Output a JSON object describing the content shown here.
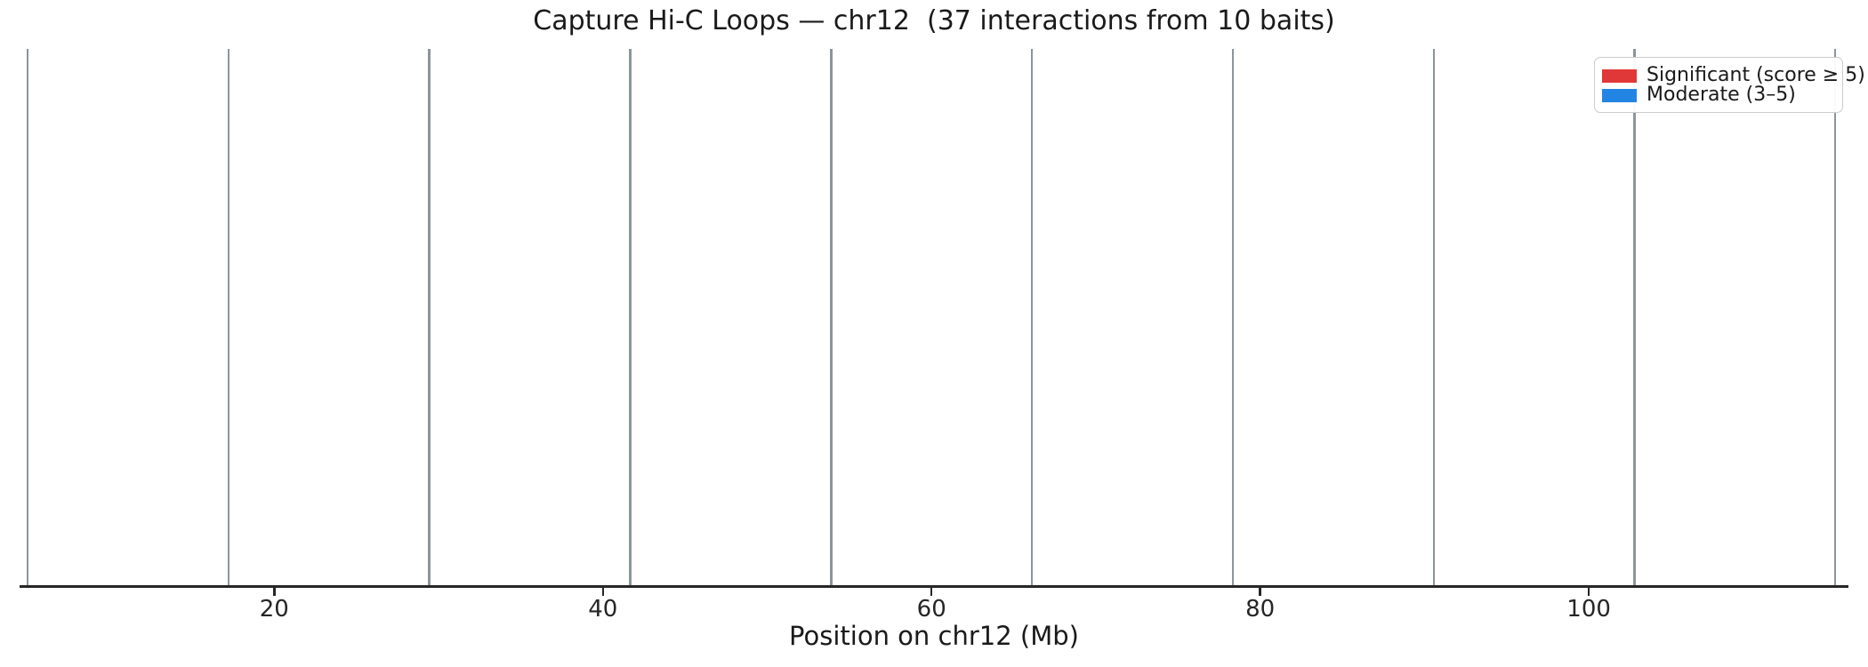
{
  "figure": {
    "background": "#ffffff",
    "text_color": "#1a1a1a",
    "axis_color": "#262626"
  },
  "chart_data": {
    "type": "line",
    "subtype": "genomic-arc-diagram (only vertical bait position lines visible; no arcs rendered in plot area)",
    "title": "Capture Hi-C Loops — chr12  (37 interactions from 10 baits)",
    "xlabel": "Position on chr12 (Mb)",
    "ylabel": "",
    "xlim": [
      4.5,
      115.8
    ],
    "xticks": [
      20,
      40,
      60,
      80,
      100
    ],
    "grid": false,
    "spines": "bottom only",
    "chromosome": "chr12",
    "n_interactions": 37,
    "n_baits": 10,
    "bait_positions_mb": [
      5.0,
      17.22,
      29.44,
      41.67,
      53.89,
      66.11,
      78.33,
      90.56,
      102.78,
      115.0
    ],
    "bait_line_color": "#8b959b",
    "legend": {
      "position": "upper right",
      "border_color": "#cccccc",
      "background_color": "#ffffff",
      "items": [
        {
          "label": "Significant (score ≥ 5)",
          "color": "#e03838"
        },
        {
          "label": "Moderate (3–5)",
          "color": "#2385e3"
        }
      ]
    }
  }
}
